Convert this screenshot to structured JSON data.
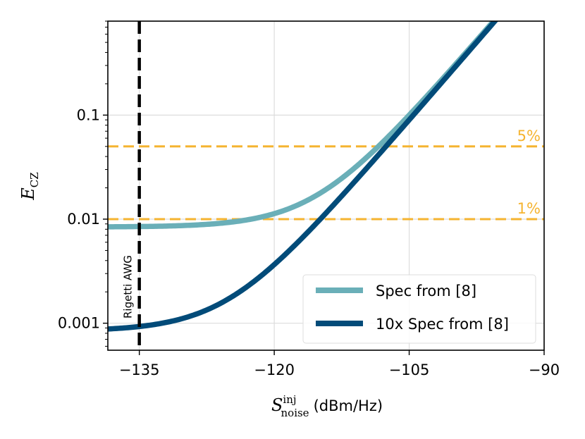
{
  "chart_data": {
    "type": "line",
    "title": "",
    "xlabel": {
      "symbol": "S",
      "superscript": "inj",
      "subscript": "noise",
      "unit": "(dBm/Hz)"
    },
    "ylabel": {
      "symbol": "E",
      "subscript": "CZ"
    },
    "xlim": [
      -138.5,
      -90
    ],
    "ylim": [
      0.00055,
      0.8
    ],
    "yscale": "log",
    "grid": true,
    "x_ticks": [
      {
        "value": -135,
        "label": "−135"
      },
      {
        "value": -120,
        "label": "−120"
      },
      {
        "value": -105,
        "label": "−105"
      },
      {
        "value": -90,
        "label": "−90"
      }
    ],
    "y_ticks": [
      {
        "value": 0.001,
        "label": "0.001"
      },
      {
        "value": 0.01,
        "label": "0.01"
      },
      {
        "value": 0.1,
        "label": "0.1"
      }
    ],
    "series": [
      {
        "name": "Spec from [8]",
        "color": "#6aafb8",
        "floor": 0.0084,
        "ref_x": -105,
        "ref_y": 0.1
      },
      {
        "name": "10x Spec from [8]",
        "color": "#024b79",
        "floor": 0.00084,
        "ref_x": -105,
        "ref_y": 0.09
      }
    ],
    "legend_position": "lower-right",
    "hlines": [
      {
        "value": 0.05,
        "label": "5%",
        "color": "#f5b431"
      },
      {
        "value": 0.01,
        "label": "1%",
        "color": "#f5b431"
      }
    ],
    "vlines": [
      {
        "value": -135,
        "label": "Rigetti AWG",
        "color": "#000000"
      }
    ]
  }
}
